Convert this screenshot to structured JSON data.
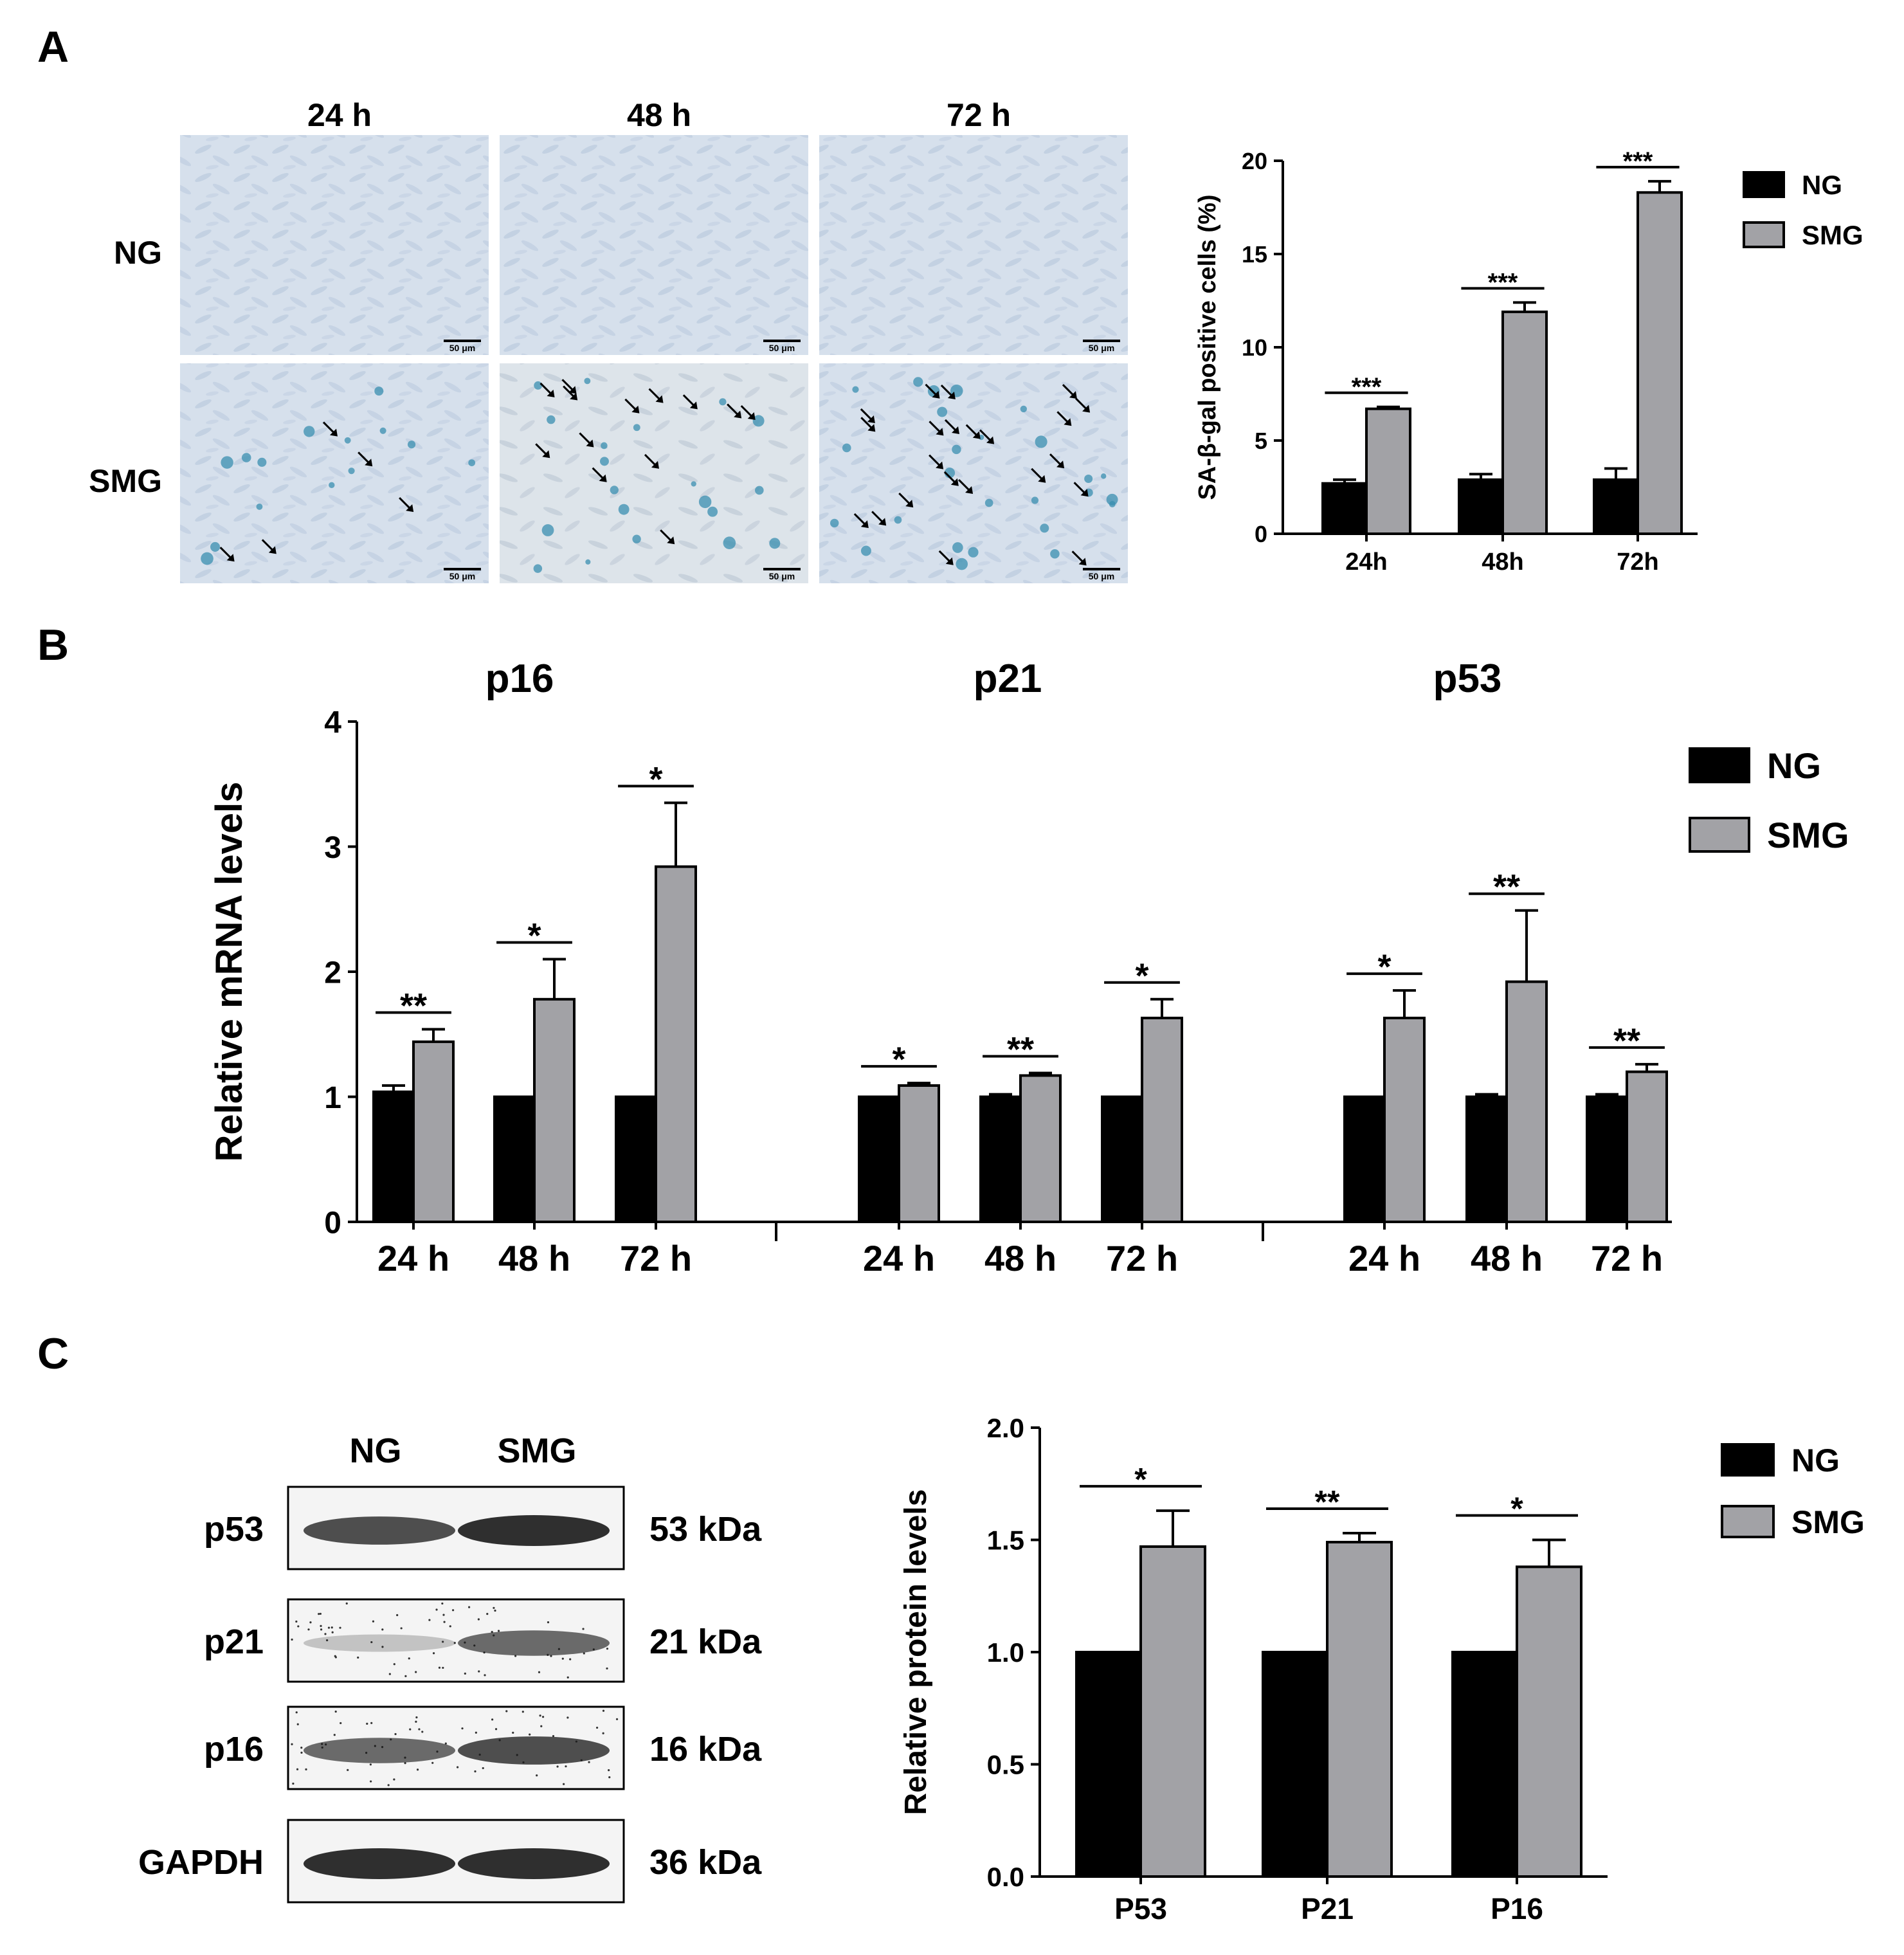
{
  "colors": {
    "ng": "#000000",
    "smg": "#a2a2a6",
    "micrograph_bg": "#d9e3ee",
    "stain": "#3a8fb0",
    "blot_band": "#1a1a1a"
  },
  "panel_letters": [
    "A",
    "B",
    "C"
  ],
  "panelA": {
    "time_labels": [
      "24 h",
      "48 h",
      "72 h"
    ],
    "row_labels": [
      "NG",
      "SMG"
    ],
    "scale_bar": "50 μm",
    "arrow_counts": [
      [
        0,
        0,
        0
      ],
      [
        5,
        13,
        22
      ]
    ]
  },
  "panelB": {
    "gene_titles": [
      "p16",
      "p21",
      "p53"
    ]
  },
  "panelC": {
    "blot_lanes": [
      "NG",
      "SMG"
    ],
    "blot_rows": [
      {
        "label": "p53",
        "kda": "53 kDa"
      },
      {
        "label": "p21",
        "kda": "21 kDa"
      },
      {
        "label": "p16",
        "kda": "16 kDa"
      },
      {
        "label": "GAPDH",
        "kda": "36 kDa"
      }
    ]
  },
  "chart_data": [
    {
      "type": "bar",
      "panel": "A",
      "categories": [
        "24h",
        "48h",
        "72h"
      ],
      "series": [
        {
          "name": "NG",
          "values": [
            2.7,
            2.9,
            2.9
          ],
          "errors": [
            0.2,
            0.3,
            0.6
          ]
        },
        {
          "name": "SMG",
          "values": [
            6.7,
            11.9,
            18.3
          ],
          "errors": [
            0.1,
            0.5,
            0.6
          ]
        }
      ],
      "significance": [
        "***",
        "***",
        "***"
      ],
      "ylabel": "SA-β-gal positive cells (%)",
      "yticks": [
        "0",
        "5",
        "10",
        "15",
        "20"
      ],
      "ylim": [
        0,
        20
      ],
      "legend": [
        "NG",
        "SMG"
      ],
      "legend_position": "top-right"
    },
    {
      "type": "bar",
      "panel": "B",
      "groups": [
        "p16",
        "p21",
        "p53"
      ],
      "categories": [
        "24 h",
        "48 h",
        "72 h",
        "24 h",
        "48 h",
        "72 h",
        "24 h",
        "48 h",
        "72 h"
      ],
      "series": [
        {
          "name": "NG",
          "values": [
            1.04,
            1.0,
            1.0,
            1.0,
            1.0,
            1.0,
            1.0,
            1.0,
            1.0
          ],
          "errors": [
            0.05,
            0.0,
            0.0,
            0.0,
            0.02,
            0.0,
            0.0,
            0.02,
            0.02
          ]
        },
        {
          "name": "SMG",
          "values": [
            1.44,
            1.78,
            2.84,
            1.09,
            1.17,
            1.63,
            1.63,
            1.92,
            1.2
          ],
          "errors": [
            0.1,
            0.32,
            0.51,
            0.02,
            0.02,
            0.15,
            0.22,
            0.57,
            0.06
          ]
        }
      ],
      "significance": [
        "**",
        "*",
        "*",
        "*",
        "**",
        "*",
        "*",
        "**",
        "**"
      ],
      "ylabel": "Relative mRNA levels",
      "yticks": [
        "0",
        "1",
        "2",
        "3",
        "4"
      ],
      "ylim": [
        0,
        4
      ],
      "legend": [
        "NG",
        "SMG"
      ],
      "legend_position": "top-right"
    },
    {
      "type": "bar",
      "panel": "C",
      "categories": [
        "P53",
        "P21",
        "P16"
      ],
      "series": [
        {
          "name": "NG",
          "values": [
            1.0,
            1.0,
            1.0
          ],
          "errors": [
            0,
            0,
            0
          ]
        },
        {
          "name": "SMG",
          "values": [
            1.47,
            1.49,
            1.38
          ],
          "errors": [
            0.16,
            0.04,
            0.12
          ]
        }
      ],
      "significance": [
        "*",
        "**",
        "*"
      ],
      "ylabel": "Relative protein levels",
      "yticks": [
        "0.0",
        "0.5",
        "1.0",
        "1.5",
        "2.0"
      ],
      "ylim": [
        0,
        2.0
      ],
      "legend": [
        "NG",
        "SMG"
      ],
      "legend_position": "top-right"
    }
  ]
}
